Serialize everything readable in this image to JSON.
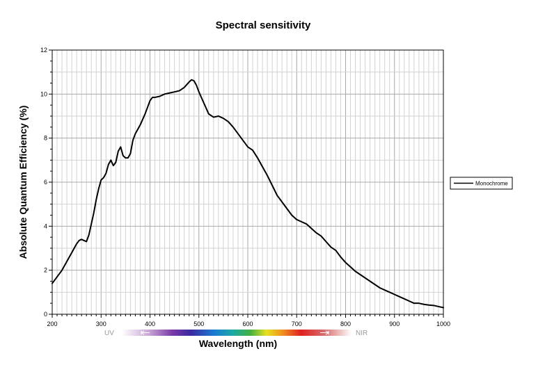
{
  "chart_data": {
    "type": "line",
    "title": "Spectral sensitivity",
    "xlabel": "Wavelength (nm)",
    "ylabel": "Absolute Quantum Efficiency (%)",
    "xlim": [
      200,
      1000
    ],
    "ylim": [
      0,
      12
    ],
    "x_ticks": [
      "200",
      "300",
      "400",
      "500",
      "600",
      "700",
      "800",
      "900",
      "1000"
    ],
    "y_ticks": [
      "0",
      "2",
      "4",
      "6",
      "8",
      "10",
      "12"
    ],
    "grid": true,
    "legend_position": "right",
    "spectrum_bar": {
      "left_label": "UV",
      "right_label": "NIR"
    },
    "series": [
      {
        "name": "Monochrome",
        "color": "#000000",
        "x": [
          200,
          210,
          220,
          230,
          240,
          250,
          255,
          260,
          265,
          270,
          275,
          280,
          285,
          290,
          295,
          300,
          305,
          310,
          315,
          320,
          325,
          330,
          335,
          340,
          345,
          350,
          355,
          360,
          365,
          370,
          380,
          390,
          400,
          405,
          410,
          420,
          430,
          440,
          450,
          460,
          470,
          480,
          485,
          490,
          495,
          500,
          510,
          520,
          530,
          540,
          550,
          560,
          570,
          580,
          590,
          600,
          610,
          620,
          630,
          640,
          650,
          660,
          670,
          680,
          690,
          700,
          710,
          720,
          730,
          740,
          750,
          760,
          770,
          780,
          790,
          800,
          810,
          820,
          830,
          840,
          850,
          860,
          870,
          880,
          890,
          900,
          910,
          920,
          930,
          940,
          950,
          960,
          970,
          980,
          990,
          1000
        ],
        "y": [
          1.4,
          1.7,
          2.0,
          2.4,
          2.8,
          3.2,
          3.35,
          3.4,
          3.35,
          3.3,
          3.6,
          4.1,
          4.6,
          5.2,
          5.7,
          6.1,
          6.2,
          6.4,
          6.8,
          7.0,
          6.75,
          6.9,
          7.4,
          7.6,
          7.2,
          7.1,
          7.1,
          7.3,
          7.9,
          8.2,
          8.6,
          9.1,
          9.7,
          9.85,
          9.85,
          9.9,
          10.0,
          10.05,
          10.1,
          10.15,
          10.3,
          10.55,
          10.65,
          10.6,
          10.4,
          10.1,
          9.6,
          9.1,
          8.95,
          9.0,
          8.9,
          8.75,
          8.5,
          8.2,
          7.9,
          7.6,
          7.45,
          7.1,
          6.7,
          6.3,
          5.85,
          5.4,
          5.1,
          4.8,
          4.5,
          4.3,
          4.2,
          4.1,
          3.9,
          3.7,
          3.55,
          3.3,
          3.05,
          2.9,
          2.6,
          2.35,
          2.15,
          1.95,
          1.8,
          1.65,
          1.5,
          1.35,
          1.2,
          1.1,
          1.0,
          0.9,
          0.8,
          0.7,
          0.6,
          0.5,
          0.5,
          0.45,
          0.42,
          0.4,
          0.35,
          0.3
        ]
      }
    ]
  }
}
